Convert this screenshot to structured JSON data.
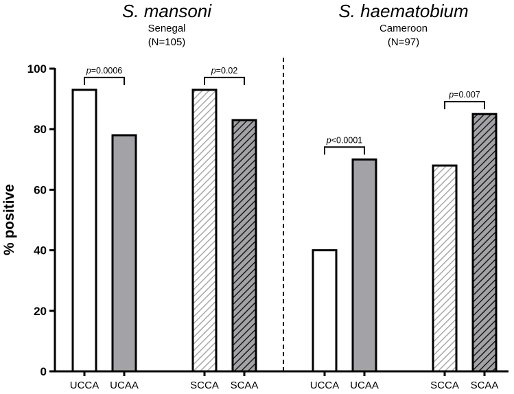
{
  "chart_data": {
    "type": "bar",
    "ylabel": "% positive",
    "ylim": [
      0,
      100
    ],
    "yticks": [
      0,
      20,
      40,
      60,
      80,
      100
    ],
    "panels": [
      {
        "title": "S. mansoni",
        "subtitle": "Senegal",
        "n_label": "(N=105)",
        "categories": [
          "UCCA",
          "UCAA",
          "SCCA",
          "SCAA"
        ],
        "values": [
          93,
          78,
          93,
          83
        ],
        "styles": [
          "open",
          "gray",
          "light-hatch",
          "dark-hatch"
        ],
        "comparisons": [
          {
            "pair": [
              "UCCA",
              "UCAA"
            ],
            "p_prefix": "p",
            "p_value": "=0.0006"
          },
          {
            "pair": [
              "SCCA",
              "SCAA"
            ],
            "p_prefix": "p",
            "p_value": "=0.02"
          }
        ]
      },
      {
        "title": "S. haematobium",
        "subtitle": "Cameroon",
        "n_label": "(N=97)",
        "categories": [
          "UCCA",
          "UCAA",
          "SCCA",
          "SCAA"
        ],
        "values": [
          40,
          70,
          68,
          85
        ],
        "styles": [
          "open",
          "gray",
          "light-hatch",
          "dark-hatch"
        ],
        "comparisons": [
          {
            "pair": [
              "UCCA",
              "UCAA"
            ],
            "p_prefix": "p",
            "p_value": "<0.0001"
          },
          {
            "pair": [
              "SCCA",
              "SCAA"
            ],
            "p_prefix": "p",
            "p_value": "=0.007"
          }
        ]
      }
    ],
    "colors": {
      "bar_edge": "#000000",
      "gray_fill": "#a3a2a6",
      "light_hatch_bg": "#ffffff",
      "light_hatch_line": "#a8a8a8",
      "dark_hatch_bg": "#a3a2a6",
      "dark_hatch_line": "#1a1a1a"
    }
  }
}
